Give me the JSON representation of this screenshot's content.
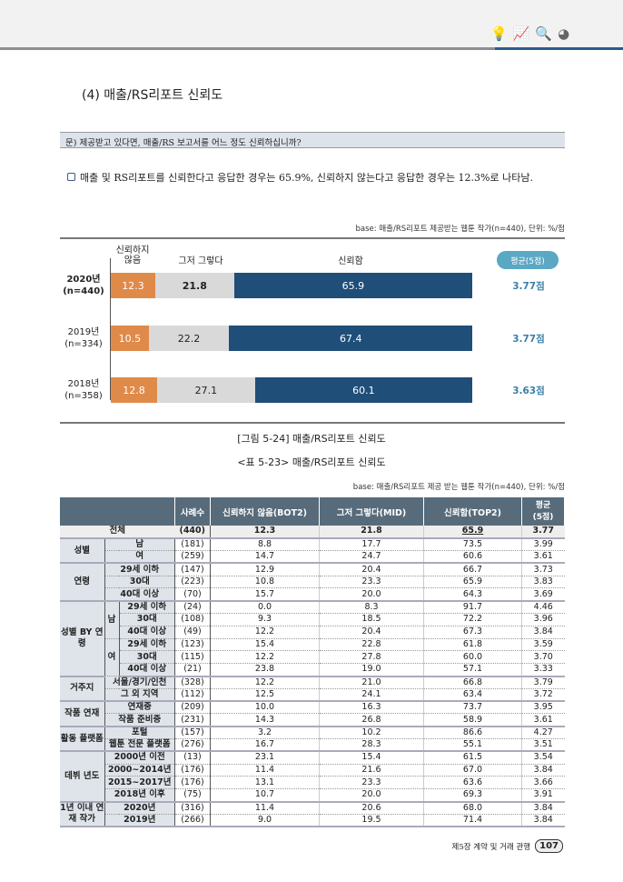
{
  "header": {
    "icons": [
      "lightbulb-icon",
      "chart-growth-icon",
      "magnifier-check-icon",
      "pie-chart-icon"
    ]
  },
  "title": "(4) 매출/RS리포트 신뢰도",
  "question": "문) 제공받고 있다면, 매출/RS 보고서를 어느 정도 신뢰하십니까?",
  "summary": "매출 및 RS리포트를 신뢰한다고 응답한 경우는 65.9%, 신뢰하지 않는다고 응답한 경우는 12.3%로 나타남.",
  "chart_base": "base: 매출/RS리포트 제공받는 웹툰 작가(n=440), 단위: %/점",
  "chart_data": {
    "type": "bar",
    "stacked": true,
    "orientation": "horizontal",
    "categories": [
      "2020년\n(n=440)",
      "2019년\n(n=334)",
      "2018년\n(n=358)"
    ],
    "series": [
      {
        "name": "신뢰하지 않음",
        "values": [
          12.3,
          10.5,
          12.8
        ],
        "color": "#e08a4a"
      },
      {
        "name": "그저 그렇다",
        "values": [
          21.8,
          22.2,
          27.1
        ],
        "color": "#d9d9d9"
      },
      {
        "name": "신뢰함",
        "values": [
          65.9,
          67.4,
          60.1
        ],
        "color": "#1f4e79"
      }
    ],
    "legend_labels": [
      "신뢰하지\n않음",
      "그저 그렇다",
      "신뢰함"
    ],
    "avg_label": "평균(5점)",
    "averages": [
      "3.77점",
      "3.77점",
      "3.63점"
    ],
    "xlim": [
      0,
      100
    ]
  },
  "figure_caption": "[그림 5-24] 매출/RS리포트 신뢰도",
  "table_caption": "<표 5-23> 매출/RS리포트 신뢰도",
  "table_base": "base: 매출/RS리포트 제공 받는 웹툰 작가(n=440), 단위: %/점",
  "table": {
    "headers": [
      "사례수",
      "신뢰하지 않음(BOT2)",
      "그저 그렇다(MID)",
      "신뢰함(TOP2)",
      "평균\n(5점)"
    ],
    "groups": [
      {
        "label": "전체",
        "total": true,
        "rows": [
          {
            "label": "",
            "n": "(440)",
            "bot2": "12.3",
            "mid": "21.8",
            "top2": "65.9",
            "avg": "3.77"
          }
        ]
      },
      {
        "label": "성별",
        "rows": [
          {
            "label": "남",
            "n": "(181)",
            "bot2": "8.8",
            "mid": "17.7",
            "top2": "73.5",
            "avg": "3.99"
          },
          {
            "label": "여",
            "n": "(259)",
            "bot2": "14.7",
            "mid": "24.7",
            "top2": "60.6",
            "avg": "3.61"
          }
        ]
      },
      {
        "label": "연령",
        "rows": [
          {
            "label": "29세 이하",
            "n": "(147)",
            "bot2": "12.9",
            "mid": "20.4",
            "top2": "66.7",
            "avg": "3.73"
          },
          {
            "label": "30대",
            "n": "(223)",
            "bot2": "10.8",
            "mid": "23.3",
            "top2": "65.9",
            "avg": "3.83"
          },
          {
            "label": "40대 이상",
            "n": "(70)",
            "bot2": "15.7",
            "mid": "20.0",
            "top2": "64.3",
            "avg": "3.69"
          }
        ]
      },
      {
        "label": "성별 BY 연령",
        "rows": [
          {
            "sub": "남",
            "label": "29세 이하",
            "n": "(24)",
            "bot2": "0.0",
            "mid": "8.3",
            "top2": "91.7",
            "avg": "4.46"
          },
          {
            "label": "30대",
            "n": "(108)",
            "bot2": "9.3",
            "mid": "18.5",
            "top2": "72.2",
            "avg": "3.96"
          },
          {
            "label": "40대 이상",
            "n": "(49)",
            "bot2": "12.2",
            "mid": "20.4",
            "top2": "67.3",
            "avg": "3.84"
          },
          {
            "sub": "여",
            "label": "29세 이하",
            "n": "(123)",
            "bot2": "15.4",
            "mid": "22.8",
            "top2": "61.8",
            "avg": "3.59"
          },
          {
            "label": "30대",
            "n": "(115)",
            "bot2": "12.2",
            "mid": "27.8",
            "top2": "60.0",
            "avg": "3.70"
          },
          {
            "label": "40대 이상",
            "n": "(21)",
            "bot2": "23.8",
            "mid": "19.0",
            "top2": "57.1",
            "avg": "3.33"
          }
        ]
      },
      {
        "label": "거주지",
        "rows": [
          {
            "label": "서울/경기/인천",
            "n": "(328)",
            "bot2": "12.2",
            "mid": "21.0",
            "top2": "66.8",
            "avg": "3.79"
          },
          {
            "label": "그 외 지역",
            "n": "(112)",
            "bot2": "12.5",
            "mid": "24.1",
            "top2": "63.4",
            "avg": "3.72"
          }
        ]
      },
      {
        "label": "작품 연재",
        "rows": [
          {
            "label": "연재중",
            "n": "(209)",
            "bot2": "10.0",
            "mid": "16.3",
            "top2": "73.7",
            "avg": "3.95"
          },
          {
            "label": "작품 준비중",
            "n": "(231)",
            "bot2": "14.3",
            "mid": "26.8",
            "top2": "58.9",
            "avg": "3.61"
          }
        ]
      },
      {
        "label": "활동 플랫폼",
        "rows": [
          {
            "label": "포털",
            "n": "(157)",
            "bot2": "3.2",
            "mid": "10.2",
            "top2": "86.6",
            "avg": "4.27"
          },
          {
            "label": "웹툰 전문 플랫폼",
            "n": "(276)",
            "bot2": "16.7",
            "mid": "28.3",
            "top2": "55.1",
            "avg": "3.51"
          }
        ]
      },
      {
        "label": "데뷔 년도",
        "rows": [
          {
            "label": "2000년 이전",
            "n": "(13)",
            "bot2": "23.1",
            "mid": "15.4",
            "top2": "61.5",
            "avg": "3.54"
          },
          {
            "label": "2000~2014년",
            "n": "(176)",
            "bot2": "11.4",
            "mid": "21.6",
            "top2": "67.0",
            "avg": "3.84"
          },
          {
            "label": "2015~2017년",
            "n": "(176)",
            "bot2": "13.1",
            "mid": "23.3",
            "top2": "63.6",
            "avg": "3.66"
          },
          {
            "label": "2018년 이후",
            "n": "(75)",
            "bot2": "10.7",
            "mid": "20.0",
            "top2": "69.3",
            "avg": "3.91"
          }
        ]
      },
      {
        "label": "1년 이내 연재 작가",
        "rows": [
          {
            "label": "2020년",
            "n": "(316)",
            "bot2": "11.4",
            "mid": "20.6",
            "top2": "68.0",
            "avg": "3.84"
          },
          {
            "label": "2019년",
            "n": "(266)",
            "bot2": "9.0",
            "mid": "19.5",
            "top2": "71.4",
            "avg": "3.84"
          }
        ]
      }
    ]
  },
  "footer": {
    "chapter": "제5장 계약 및 거래 관행",
    "page": "107"
  }
}
